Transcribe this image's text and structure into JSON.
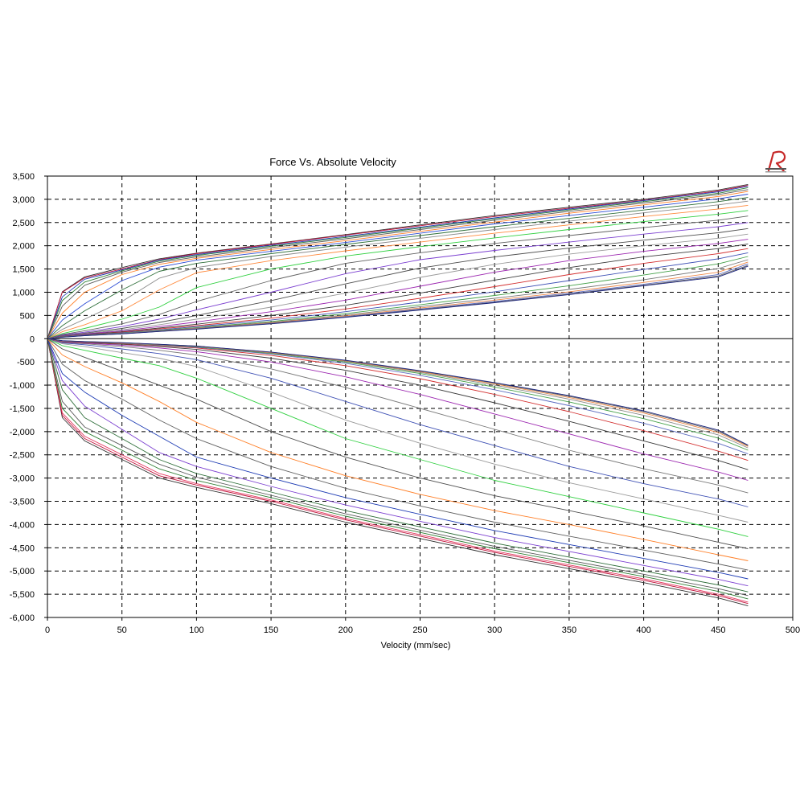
{
  "chart_data": {
    "type": "line",
    "title": "Force Vs. Absolute Velocity",
    "xlabel": "Velocity (mm/sec)",
    "ylabel": "",
    "xlim": [
      0,
      500
    ],
    "ylim": [
      -6000,
      3500
    ],
    "xticks": [
      0,
      50,
      100,
      150,
      200,
      250,
      300,
      350,
      400,
      450,
      500
    ],
    "yticks": [
      3500,
      3000,
      2500,
      2000,
      1500,
      1000,
      500,
      0,
      -500,
      -1000,
      -1500,
      -2000,
      -2500,
      -3000,
      -3500,
      -4000,
      -4500,
      -5000,
      -5500,
      -6000
    ],
    "ytick_labels": [
      "3,500",
      "3,000",
      "2,500",
      "2,000",
      "1,500",
      "1,000",
      "500",
      "0",
      "-500",
      "-1,000",
      "-1,500",
      "-2,000",
      "-2,500",
      "-3,000",
      "-3,500",
      "-4,000",
      "-4,500",
      "-5,000",
      "-5,500",
      "-6,000"
    ],
    "xtick_labels": [
      "0",
      "50",
      "100",
      "150",
      "200",
      "250",
      "300",
      "350",
      "400",
      "450",
      "500"
    ],
    "grid": true,
    "grid_style": "dashed",
    "legend": "none",
    "x": [
      0,
      10,
      25,
      50,
      75,
      100,
      150,
      200,
      250,
      300,
      350,
      400,
      450,
      470
    ],
    "series": [
      {
        "color": "#303030",
        "values": [
          0,
          1010,
          1330,
          1530,
          1720,
          1840,
          2040,
          2240,
          2450,
          2650,
          2830,
          3000,
          3200,
          3320
        ]
      },
      {
        "color": "#c0143c",
        "values": [
          0,
          1000,
          1310,
          1500,
          1700,
          1830,
          2030,
          2230,
          2430,
          2630,
          2810,
          2980,
          3180,
          3300
        ]
      },
      {
        "color": "#1e3cb4",
        "values": [
          0,
          900,
          1280,
          1480,
          1690,
          1810,
          2010,
          2200,
          2400,
          2600,
          2790,
          2970,
          3160,
          3280
        ]
      },
      {
        "color": "#2e7d32",
        "values": [
          0,
          820,
          1220,
          1460,
          1670,
          1790,
          1990,
          2180,
          2380,
          2580,
          2770,
          2950,
          3130,
          3250
        ]
      },
      {
        "color": "#5a5a5a",
        "values": [
          0,
          700,
          1150,
          1430,
          1640,
          1760,
          1960,
          2150,
          2350,
          2550,
          2740,
          2920,
          3100,
          3210
        ]
      },
      {
        "color": "#ff7f27",
        "values": [
          0,
          550,
          1000,
          1380,
          1600,
          1730,
          1920,
          2110,
          2310,
          2510,
          2700,
          2880,
          3060,
          3170
        ]
      },
      {
        "color": "#2a4ad4",
        "values": [
          0,
          400,
          750,
          1250,
          1540,
          1690,
          1880,
          2070,
          2270,
          2470,
          2650,
          2830,
          3010,
          3110
        ]
      },
      {
        "color": "#2f6f3a",
        "values": [
          0,
          280,
          600,
          1050,
          1450,
          1620,
          1830,
          2030,
          2220,
          2410,
          2590,
          2770,
          2950,
          3040
        ]
      },
      {
        "color": "#8a8a8a",
        "values": [
          0,
          200,
          420,
          800,
          1300,
          1530,
          1770,
          1970,
          2160,
          2350,
          2530,
          2710,
          2880,
          2960
        ]
      },
      {
        "color": "#ff8a3d",
        "values": [
          0,
          150,
          300,
          600,
          1050,
          1420,
          1680,
          1890,
          2080,
          2270,
          2450,
          2630,
          2790,
          2870
        ]
      },
      {
        "color": "#30d040",
        "values": [
          0,
          110,
          220,
          420,
          680,
          1100,
          1500,
          1780,
          1980,
          2170,
          2350,
          2520,
          2680,
          2760
        ]
      },
      {
        "color": "#606060",
        "values": [
          0,
          90,
          170,
          320,
          520,
          800,
          1250,
          1620,
          1850,
          2050,
          2220,
          2390,
          2550,
          2640
        ]
      },
      {
        "color": "#7b3fd0",
        "values": [
          0,
          80,
          140,
          260,
          420,
          620,
          1000,
          1400,
          1700,
          1900,
          2080,
          2250,
          2410,
          2500
        ]
      },
      {
        "color": "#4e4e4e",
        "values": [
          0,
          70,
          120,
          220,
          350,
          500,
          820,
          1180,
          1520,
          1760,
          1950,
          2120,
          2280,
          2370
        ]
      },
      {
        "color": "#9a9a9a",
        "values": [
          0,
          60,
          110,
          190,
          300,
          420,
          680,
          980,
          1320,
          1600,
          1820,
          2000,
          2160,
          2250
        ]
      },
      {
        "color": "#9c27b0",
        "values": [
          0,
          55,
          100,
          170,
          260,
          360,
          580,
          830,
          1130,
          1430,
          1680,
          1880,
          2050,
          2140
        ]
      },
      {
        "color": "#3a3a3a",
        "values": [
          0,
          50,
          90,
          150,
          230,
          310,
          500,
          720,
          980,
          1260,
          1530,
          1760,
          1940,
          2040
        ]
      },
      {
        "color": "#d32f2f",
        "values": [
          0,
          45,
          85,
          140,
          210,
          280,
          440,
          640,
          870,
          1120,
          1380,
          1620,
          1830,
          1940
        ]
      },
      {
        "color": "#3f51b5",
        "values": [
          0,
          42,
          80,
          130,
          190,
          260,
          400,
          580,
          790,
          1010,
          1250,
          1490,
          1720,
          1850
        ]
      },
      {
        "color": "#43a047",
        "values": [
          0,
          40,
          75,
          120,
          180,
          240,
          370,
          540,
          730,
          930,
          1140,
          1370,
          1610,
          1770
        ]
      },
      {
        "color": "#777777",
        "values": [
          0,
          38,
          72,
          115,
          170,
          230,
          350,
          510,
          690,
          870,
          1060,
          1270,
          1510,
          1700
        ]
      },
      {
        "color": "#ef8a4a",
        "values": [
          0,
          36,
          70,
          110,
          165,
          220,
          340,
          490,
          660,
          830,
          1010,
          1210,
          1430,
          1650
        ]
      },
      {
        "color": "#5c6bc0",
        "values": [
          0,
          35,
          68,
          108,
          160,
          215,
          330,
          475,
          640,
          800,
          980,
          1170,
          1380,
          1610
        ]
      },
      {
        "color": "#666666",
        "values": [
          0,
          34,
          66,
          105,
          157,
          210,
          325,
          465,
          625,
          785,
          960,
          1150,
          1350,
          1580
        ]
      },
      {
        "color": "#1a237e",
        "values": [
          0,
          33,
          65,
          103,
          155,
          205,
          320,
          460,
          615,
          775,
          950,
          1140,
          1330,
          1560
        ]
      },
      {
        "color": "#303030",
        "values": [
          0,
          -1700,
          -2200,
          -2600,
          -3000,
          -3200,
          -3550,
          -3950,
          -4300,
          -4650,
          -4950,
          -5250,
          -5580,
          -5750
        ]
      },
      {
        "color": "#c0143c",
        "values": [
          0,
          -1650,
          -2150,
          -2550,
          -2950,
          -3150,
          -3500,
          -3900,
          -4250,
          -4600,
          -4900,
          -5200,
          -5530,
          -5700
        ]
      },
      {
        "color": "#e53960",
        "values": [
          0,
          -1600,
          -2100,
          -2500,
          -2900,
          -3120,
          -3470,
          -3870,
          -4220,
          -4570,
          -4870,
          -5170,
          -5500,
          -5670
        ]
      },
      {
        "color": "#2e7d32",
        "values": [
          0,
          -1500,
          -2000,
          -2400,
          -2800,
          -3050,
          -3420,
          -3820,
          -4170,
          -4520,
          -4820,
          -5120,
          -5440,
          -5600
        ]
      },
      {
        "color": "#5a5a5a",
        "values": [
          0,
          -1350,
          -1900,
          -2300,
          -2700,
          -2980,
          -3370,
          -3770,
          -4120,
          -4470,
          -4770,
          -5070,
          -5380,
          -5530
        ]
      },
      {
        "color": "#2f6f3a",
        "values": [
          0,
          -1100,
          -1700,
          -2150,
          -2600,
          -2900,
          -3300,
          -3700,
          -4050,
          -4400,
          -4700,
          -5000,
          -5300,
          -5450
        ]
      },
      {
        "color": "#7b3fd0",
        "values": [
          0,
          -900,
          -1450,
          -1950,
          -2450,
          -2750,
          -3180,
          -3580,
          -3930,
          -4280,
          -4580,
          -4880,
          -5180,
          -5320
        ]
      },
      {
        "color": "#1e3cb4",
        "values": [
          0,
          -750,
          -1150,
          -1650,
          -2100,
          -2550,
          -3000,
          -3420,
          -3780,
          -4130,
          -4430,
          -4730,
          -5030,
          -5170
        ]
      },
      {
        "color": "#606060",
        "values": [
          0,
          -550,
          -900,
          -1300,
          -1750,
          -2150,
          -2750,
          -3220,
          -3600,
          -3950,
          -4250,
          -4550,
          -4850,
          -4980
        ]
      },
      {
        "color": "#ff7f27",
        "values": [
          0,
          -350,
          -600,
          -950,
          -1350,
          -1800,
          -2450,
          -2950,
          -3350,
          -3700,
          -4000,
          -4320,
          -4650,
          -4780
        ]
      },
      {
        "color": "#4e4e4e",
        "values": [
          0,
          -220,
          -400,
          -700,
          -1000,
          -1300,
          -2000,
          -2550,
          -3000,
          -3380,
          -3700,
          -4030,
          -4380,
          -4520
        ]
      },
      {
        "color": "#30d040",
        "values": [
          0,
          -150,
          -250,
          -420,
          -580,
          -850,
          -1500,
          -2150,
          -2600,
          -3050,
          -3400,
          -3750,
          -4100,
          -4260
        ]
      },
      {
        "color": "#9a9a9a",
        "values": [
          0,
          -110,
          -170,
          -300,
          -420,
          -600,
          -1150,
          -1750,
          -2250,
          -2700,
          -3100,
          -3450,
          -3800,
          -3950
        ]
      },
      {
        "color": "#3f51b5",
        "values": [
          0,
          -90,
          -130,
          -220,
          -320,
          -450,
          -850,
          -1350,
          -1850,
          -2300,
          -2750,
          -3120,
          -3450,
          -3620
        ]
      },
      {
        "color": "#777777",
        "values": [
          0,
          -80,
          -110,
          -170,
          -250,
          -350,
          -650,
          -1050,
          -1500,
          -1950,
          -2400,
          -2800,
          -3150,
          -3320
        ]
      },
      {
        "color": "#9c27b0",
        "values": [
          0,
          -70,
          -95,
          -140,
          -200,
          -280,
          -500,
          -820,
          -1200,
          -1620,
          -2050,
          -2480,
          -2870,
          -3050
        ]
      },
      {
        "color": "#3a3a3a",
        "values": [
          0,
          -62,
          -85,
          -120,
          -170,
          -230,
          -420,
          -680,
          -1000,
          -1380,
          -1780,
          -2200,
          -2620,
          -2820
        ]
      },
      {
        "color": "#d32f2f",
        "values": [
          0,
          -56,
          -78,
          -110,
          -150,
          -200,
          -360,
          -580,
          -860,
          -1200,
          -1570,
          -1980,
          -2420,
          -2620
        ]
      },
      {
        "color": "#5c6bc0",
        "values": [
          0,
          -52,
          -72,
          -100,
          -140,
          -185,
          -330,
          -530,
          -790,
          -1100,
          -1440,
          -1820,
          -2250,
          -2480
        ]
      },
      {
        "color": "#43a047",
        "values": [
          0,
          -49,
          -68,
          -95,
          -133,
          -175,
          -315,
          -505,
          -750,
          -1040,
          -1360,
          -1720,
          -2140,
          -2400
        ]
      },
      {
        "color": "#888888",
        "values": [
          0,
          -47,
          -66,
          -92,
          -128,
          -168,
          -305,
          -490,
          -725,
          -1000,
          -1300,
          -1650,
          -2070,
          -2350
        ]
      },
      {
        "color": "#ef8a4a",
        "values": [
          0,
          -45,
          -64,
          -90,
          -125,
          -164,
          -298,
          -478,
          -710,
          -975,
          -1265,
          -1600,
          -2020,
          -2320
        ]
      },
      {
        "color": "#666666",
        "values": [
          0,
          -44,
          -63,
          -88,
          -122,
          -160,
          -292,
          -470,
          -698,
          -958,
          -1242,
          -1572,
          -1990,
          -2300
        ]
      },
      {
        "color": "#1a237e",
        "values": [
          0,
          -43,
          -62,
          -86,
          -120,
          -158,
          -288,
          -465,
          -690,
          -945,
          -1225,
          -1552,
          -1968,
          -2290
        ]
      }
    ]
  }
}
